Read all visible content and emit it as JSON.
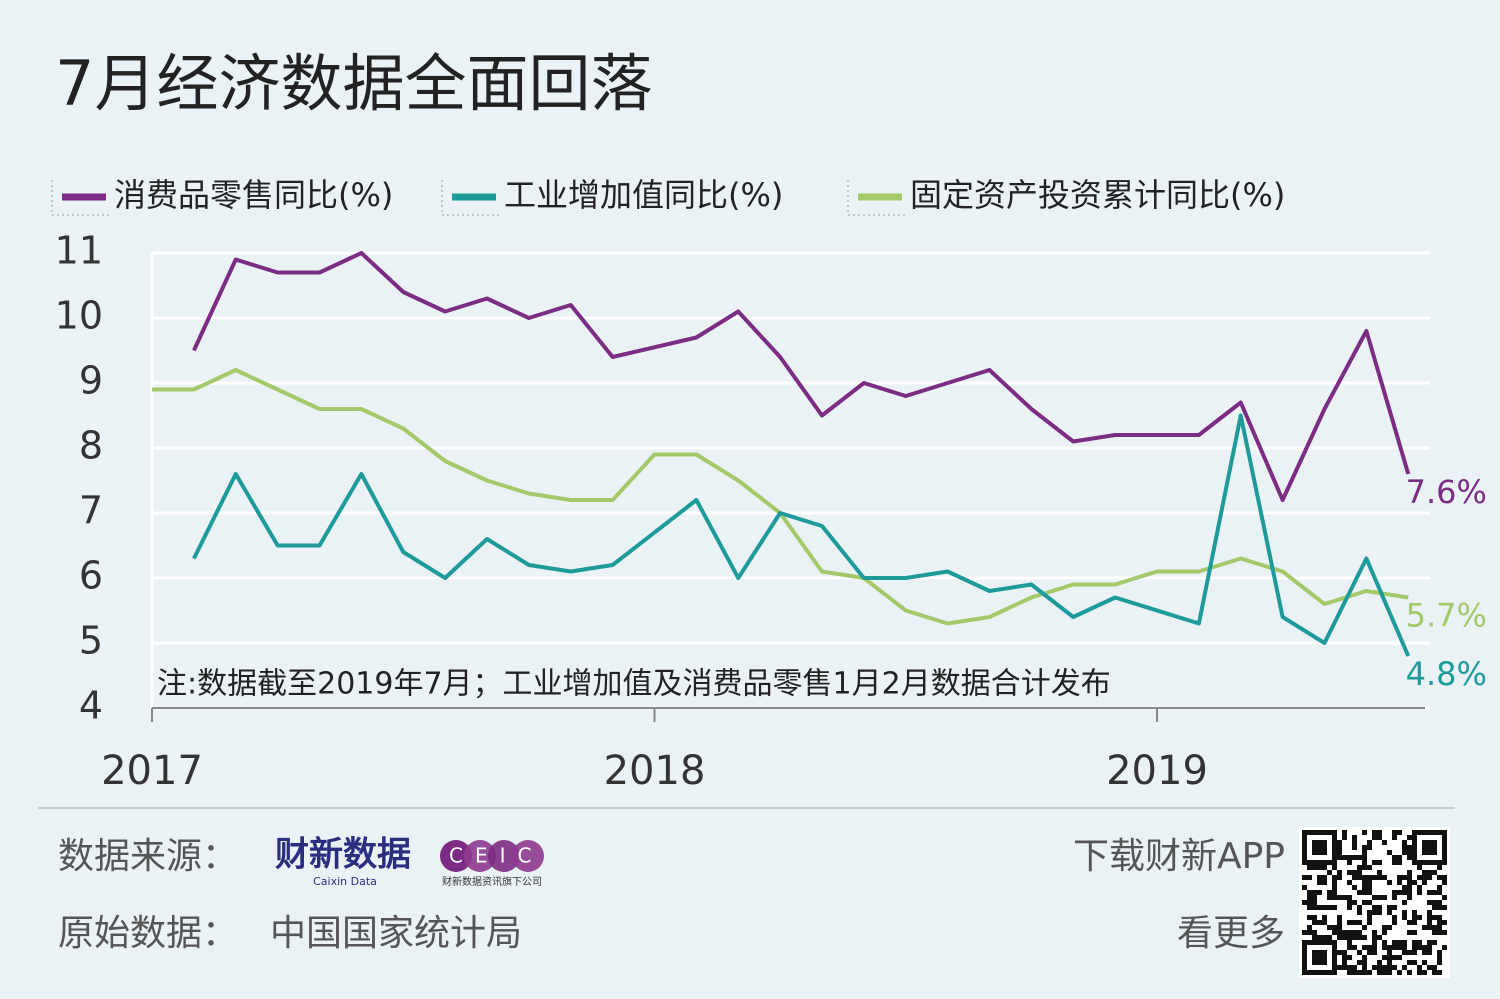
{
  "chart_data": {
    "type": "line",
    "title": "7月经济数据全面回落",
    "note": "注:数据截至2019年7月；工业增加值及消费品零售1月2月数据合计发布",
    "xlim": [
      0,
      30.4
    ],
    "xticks": [
      {
        "value": 0,
        "label": "2017"
      },
      {
        "value": 12,
        "label": "2018"
      },
      {
        "value": 24,
        "label": "2019"
      }
    ],
    "ylim": [
      4,
      11
    ],
    "yticks": [
      4,
      5,
      6,
      7,
      8,
      9,
      10,
      11
    ],
    "grid": true,
    "series": [
      {
        "name": "消费品零售同比(%)",
        "color": "#7b2c83",
        "x": [
          1,
          2,
          3,
          4,
          5,
          6,
          7,
          8,
          9,
          10,
          11,
          13,
          14,
          15,
          16,
          17,
          18,
          19,
          20,
          21,
          22,
          23,
          25,
          26,
          27,
          28,
          29,
          30
        ],
        "values": [
          9.5,
          10.9,
          10.7,
          10.7,
          11.0,
          10.4,
          10.1,
          10.3,
          10.0,
          10.2,
          9.4,
          9.7,
          10.1,
          9.4,
          8.5,
          9.0,
          8.8,
          9.0,
          9.2,
          8.6,
          8.1,
          8.2,
          8.2,
          8.7,
          7.2,
          8.6,
          9.8,
          7.6
        ],
        "value_labels": [
          null,
          null,
          null,
          null,
          null,
          null,
          null,
          null,
          null,
          null,
          null,
          null,
          null,
          null,
          null,
          null,
          null,
          null,
          null,
          null,
          null,
          null,
          null,
          null,
          null,
          null,
          null,
          "7.6%"
        ]
      },
      {
        "name": "工业增加值同比(%)",
        "color": "#1f9a9a",
        "x": [
          1,
          2,
          3,
          4,
          5,
          6,
          7,
          8,
          9,
          10,
          11,
          13,
          14,
          15,
          16,
          17,
          18,
          19,
          20,
          21,
          22,
          23,
          25,
          26,
          27,
          28,
          29,
          30
        ],
        "values": [
          6.3,
          7.6,
          6.5,
          6.5,
          7.6,
          6.4,
          6.0,
          6.6,
          6.2,
          6.1,
          6.2,
          7.2,
          6.0,
          7.0,
          6.8,
          6.0,
          6.0,
          6.1,
          5.8,
          5.9,
          5.4,
          5.7,
          5.3,
          8.5,
          5.4,
          5.0,
          6.3,
          4.8
        ],
        "value_labels": [
          null,
          null,
          null,
          null,
          null,
          null,
          null,
          null,
          null,
          null,
          null,
          null,
          null,
          null,
          null,
          null,
          null,
          null,
          null,
          null,
          null,
          null,
          null,
          null,
          null,
          null,
          null,
          "4.8%"
        ]
      },
      {
        "name": "固定资产投资累计同比(%)",
        "color": "#a3c96a",
        "x": [
          0,
          1,
          2,
          3,
          4,
          5,
          6,
          7,
          8,
          9,
          10,
          11,
          12,
          13,
          14,
          15,
          16,
          17,
          18,
          19,
          20,
          21,
          22,
          23,
          24,
          25,
          26,
          27,
          28,
          29,
          30
        ],
        "values": [
          8.9,
          8.9,
          9.2,
          8.9,
          8.6,
          8.6,
          8.3,
          7.8,
          7.5,
          7.3,
          7.2,
          7.2,
          7.9,
          7.9,
          7.5,
          7.0,
          6.1,
          6.0,
          5.5,
          5.3,
          5.4,
          5.7,
          5.9,
          5.9,
          6.1,
          6.1,
          6.3,
          6.1,
          5.6,
          5.8,
          5.7
        ],
        "value_labels": [
          null,
          null,
          null,
          null,
          null,
          null,
          null,
          null,
          null,
          null,
          null,
          null,
          null,
          null,
          null,
          null,
          null,
          null,
          null,
          null,
          null,
          null,
          null,
          null,
          null,
          null,
          null,
          null,
          null,
          null,
          "5.7%"
        ]
      }
    ]
  },
  "footer": {
    "source_label": "数据来源：",
    "logo_name": "财新数据",
    "logo_sub": "Caixin Data",
    "ceic": "CEIC",
    "ceic_sub": "财新数据资讯旗下公司",
    "raw_label": "原始数据：",
    "raw_source": "中国国家统计局",
    "app": "下载财新APP",
    "more": "看更多"
  }
}
